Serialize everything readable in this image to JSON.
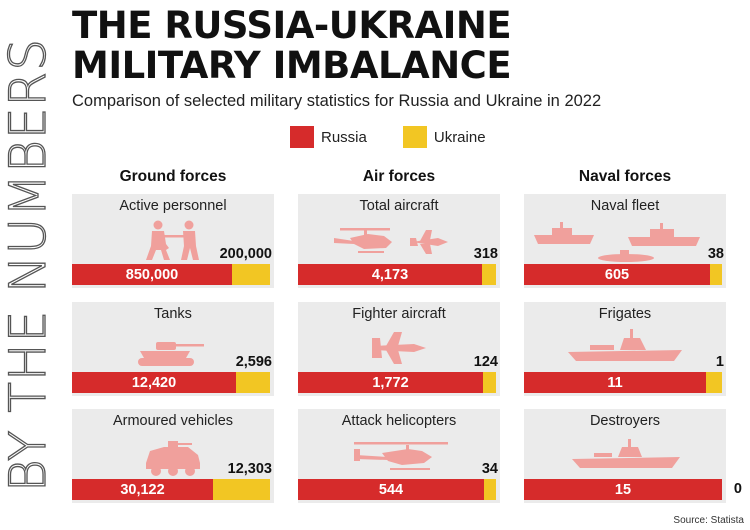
{
  "side_label": "BY THE NUMBERS",
  "title_line1": "THE RUSSIA-UKRAINE",
  "title_line2": "MILITARY IMBALANCE",
  "subtitle": "Comparison of selected military statistics for Russia and Ukraine in 2022",
  "source": "Source: Statista",
  "colors": {
    "russia": "#d62b2b",
    "ukraine": "#f2c623",
    "panel": "#ebebeb",
    "icon": "#f0a09c"
  },
  "chart_data": {
    "type": "bar",
    "orientation": "horizontal-stacked-share",
    "title": "THE RUSSIA-UKRAINE MILITARY IMBALANCE",
    "subtitle": "Comparison of selected military statistics for Russia and Ukraine in 2022",
    "legend": [
      {
        "name": "Russia",
        "color": "#d62b2b"
      },
      {
        "name": "Ukraine",
        "color": "#f2c623"
      }
    ],
    "legend_position": "top",
    "groups": [
      {
        "title": "Ground forces",
        "panels": [
          {
            "label": "Active personnel",
            "icon": "soldiers-icon",
            "russia": 850000,
            "ukraine": 200000,
            "russia_text": "850,000",
            "ukraine_text": "200,000"
          },
          {
            "label": "Tanks",
            "icon": "tank-icon",
            "russia": 12420,
            "ukraine": 2596,
            "russia_text": "12,420",
            "ukraine_text": "2,596"
          },
          {
            "label": "Armoured vehicles",
            "icon": "armoured-vehicle-icon",
            "russia": 30122,
            "ukraine": 12303,
            "russia_text": "30,122",
            "ukraine_text": "12,303"
          }
        ]
      },
      {
        "title": "Air forces",
        "panels": [
          {
            "label": "Total aircraft",
            "icon": "aircraft-icon",
            "russia": 4173,
            "ukraine": 318,
            "russia_text": "4,173",
            "ukraine_text": "318"
          },
          {
            "label": "Fighter aircraft",
            "icon": "fighter-jet-icon",
            "russia": 1772,
            "ukraine": 124,
            "russia_text": "1,772",
            "ukraine_text": "124"
          },
          {
            "label": "Attack helicopters",
            "icon": "attack-helicopter-icon",
            "russia": 544,
            "ukraine": 34,
            "russia_text": "544",
            "ukraine_text": "34"
          }
        ]
      },
      {
        "title": "Naval forces",
        "panels": [
          {
            "label": "Naval fleet",
            "icon": "naval-fleet-icon",
            "russia": 605,
            "ukraine": 38,
            "russia_text": "605",
            "ukraine_text": "38"
          },
          {
            "label": "Frigates",
            "icon": "frigate-icon",
            "russia": 11,
            "ukraine": 1,
            "russia_text": "11",
            "ukraine_text": "1"
          },
          {
            "label": "Destroyers",
            "icon": "destroyer-icon",
            "russia": 15,
            "ukraine": 0,
            "russia_text": "15",
            "ukraine_text": "0"
          }
        ]
      }
    ]
  }
}
